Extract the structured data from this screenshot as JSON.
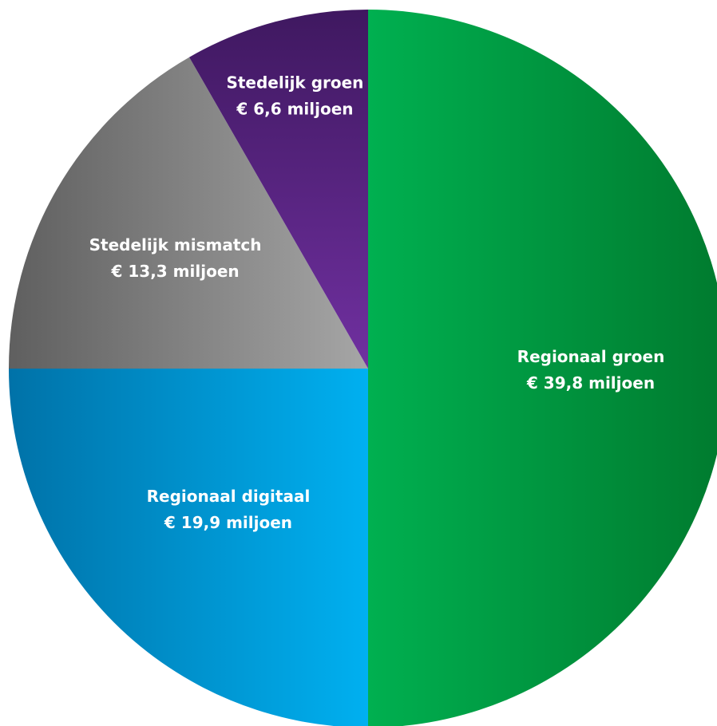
{
  "chart_data": {
    "type": "pie",
    "title": "",
    "start_angle_deg": 0,
    "direction": "clockwise",
    "slices": [
      {
        "name": "Regionaal groen",
        "value_label": "€ 39,8 miljoen",
        "value": 39.8,
        "unit": "miljoen euro",
        "color": "#00b050",
        "color_dark": "#007a2e"
      },
      {
        "name": "Regionaal digitaal",
        "value_label": "€ 19,9 miljoen",
        "value": 19.9,
        "unit": "miljoen euro",
        "color": "#00b0f0",
        "color_dark": "#0072a8"
      },
      {
        "name": "Stedelijk mismatch",
        "value_label": "€ 13,3 miljoen",
        "value": 13.3,
        "unit": "miljoen euro",
        "color": "#a6a6a6",
        "color_dark": "#5f5f5f"
      },
      {
        "name": "Stedelijk groen",
        "value_label": "€ 6,6 miljoen",
        "value": 6.6,
        "unit": "miljoen euro",
        "color": "#7030a0",
        "color_dark": "#3f1860"
      }
    ],
    "legend": "none",
    "labels": "inside"
  }
}
